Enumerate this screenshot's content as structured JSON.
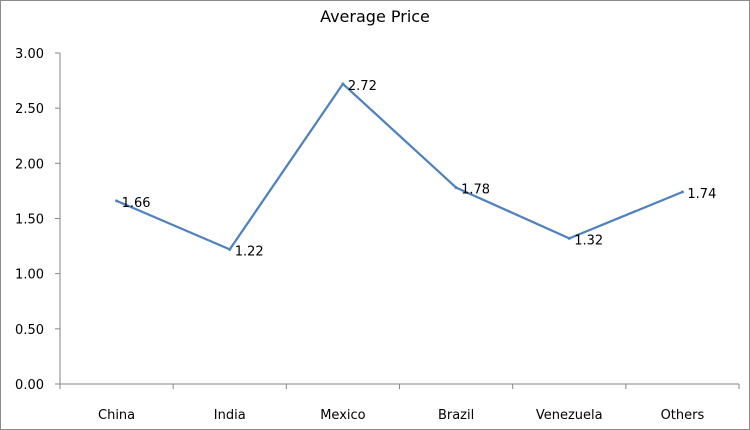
{
  "chart_data": {
    "type": "line",
    "title": "Average Price",
    "categories": [
      "China",
      "India",
      "Mexico",
      "Brazil",
      "Venezuela",
      "Others"
    ],
    "series": [
      {
        "values": [
          1.66,
          1.22,
          2.72,
          1.78,
          1.32,
          1.74
        ],
        "color": "#4f81bd"
      }
    ],
    "data_labels": [
      "1.66",
      "1.22",
      "2.72",
      "1.78",
      "1.32",
      "1.74"
    ],
    "y_ticks": [
      "0.00",
      "0.50",
      "1.00",
      "1.50",
      "2.00",
      "2.50",
      "3.00"
    ],
    "ylim": [
      0,
      3
    ],
    "grid": false,
    "legend": "none",
    "axis_color": "#868686"
  }
}
